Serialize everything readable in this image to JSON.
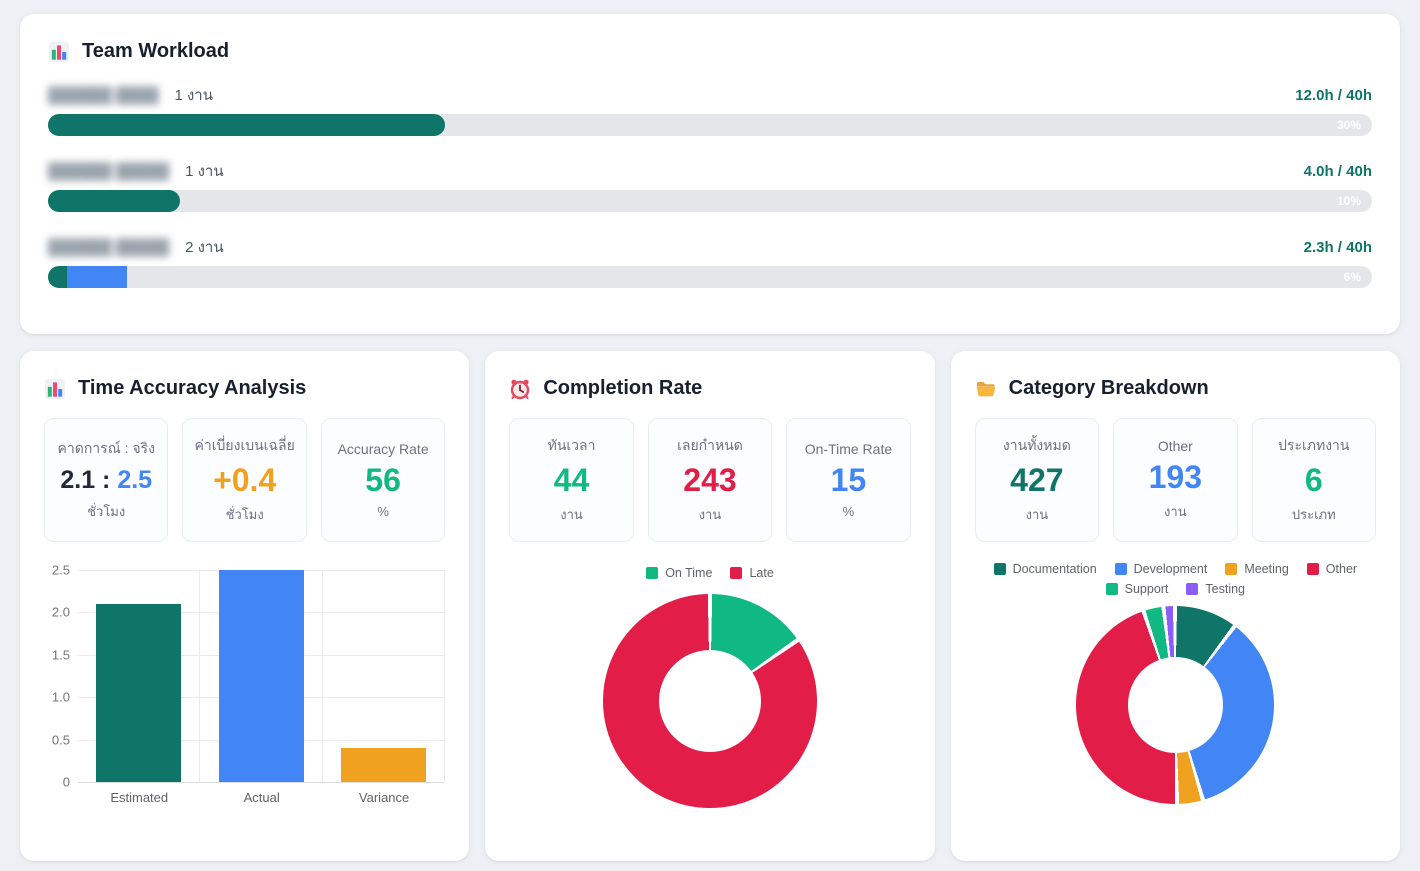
{
  "theme": {
    "background": "#eef0f6",
    "card_bg": "#ffffff",
    "teal": "#0e7568",
    "blue": "#4285f4",
    "red": "#e11d48",
    "green": "#10b981",
    "orange": "#f0a120",
    "purple": "#8b5cf6",
    "track_gray": "#e4e6ea",
    "text_dark": "#18202e",
    "text_gray": "#6b7280"
  },
  "workload": {
    "title": "Team Workload",
    "icon": "bar-chart-icon",
    "rows": [
      {
        "name_redacted": "██████ ████",
        "tasks_label": "1 งาน",
        "hours_label": "12.0h / 40h",
        "percent_label": "30%"
      },
      {
        "name_redacted": "██████ █████",
        "tasks_label": "1 งาน",
        "hours_label": "4.0h / 40h",
        "percent_label": "10%"
      },
      {
        "name_redacted": "██████ █████",
        "tasks_label": "2 งาน",
        "hours_label": "2.3h / 40h",
        "percent_label": "6%"
      }
    ]
  },
  "time_accuracy": {
    "title": "Time Accuracy Analysis",
    "icon": "bar-chart-icon",
    "stats": [
      {
        "label": "คาดการณ์ : จริง",
        "value_left": "2.1",
        "separator": " : ",
        "value_right": "2.5",
        "color_left": "#1f2937",
        "color_right": "#4285f4",
        "unit": "ชั่วโมง"
      },
      {
        "label": "ค่าเบี่ยงเบนเฉลี่ย",
        "value": "+0.4",
        "color": "#f0a120",
        "unit": "ชั่วโมง"
      },
      {
        "label": "Accuracy Rate",
        "value": "56",
        "color": "#10b981",
        "unit": "%"
      }
    ]
  },
  "completion": {
    "title": "Completion Rate",
    "icon": "alarm-clock-icon",
    "stats": [
      {
        "label": "ทันเวลา",
        "value": "44",
        "color": "#10b981",
        "unit": "งาน"
      },
      {
        "label": "เลยกำหนด",
        "value": "243",
        "color": "#e11d48",
        "unit": "งาน"
      },
      {
        "label": "On-Time Rate",
        "value": "15",
        "color": "#4285f4",
        "unit": "%"
      }
    ]
  },
  "category": {
    "title": "Category Breakdown",
    "icon": "folder-icon",
    "stats": [
      {
        "label": "งานทั้งหมด",
        "value": "427",
        "color": "#0e7568",
        "unit": "งาน"
      },
      {
        "label": "Other",
        "value": "193",
        "color": "#4285f4",
        "unit": "งาน"
      },
      {
        "label": "ประเภทงาน",
        "value": "6",
        "color": "#10b981",
        "unit": "ประเภท"
      }
    ]
  },
  "chart_data": [
    {
      "id": "team-workload-bars",
      "type": "bar",
      "orientation": "horizontal",
      "rows": [
        {
          "member": "(redacted)",
          "tasks": 1,
          "hours_used": 12.0,
          "hours_capacity": 40,
          "percent": 30,
          "segments": [
            {
              "color": "#0e7568",
              "pct": 30,
              "rounded": true
            }
          ]
        },
        {
          "member": "(redacted)",
          "tasks": 1,
          "hours_used": 4.0,
          "hours_capacity": 40,
          "percent": 10,
          "segments": [
            {
              "color": "#0e7568",
              "pct": 10,
              "rounded": true
            }
          ]
        },
        {
          "member": "(redacted)",
          "tasks": 2,
          "hours_used": 2.3,
          "hours_capacity": 40,
          "percent": 6,
          "segments": [
            {
              "color": "#0e7568",
              "pct": 1.4,
              "rounded": false
            },
            {
              "color": "#4285f4",
              "pct": 4.6,
              "rounded": false
            }
          ]
        }
      ]
    },
    {
      "id": "time-accuracy-bars",
      "type": "bar",
      "categories": [
        "Estimated",
        "Actual",
        "Variance"
      ],
      "values": [
        2.1,
        2.5,
        0.4
      ],
      "colors": [
        "#0e7568",
        "#4285f4",
        "#f0a120"
      ],
      "ylim": [
        0,
        2.5
      ],
      "yticks": [
        "2.5",
        "2.0",
        "1.5",
        "1.0",
        "0.5",
        "0"
      ],
      "grid": true,
      "title": "",
      "xlabel": "",
      "ylabel": ""
    },
    {
      "id": "completion-donut",
      "type": "pie",
      "subtype": "donut",
      "labels": [
        "On Time",
        "Late"
      ],
      "values": [
        44,
        243
      ],
      "colors": [
        "#10b981",
        "#e11d48"
      ],
      "legend_position": "top"
    },
    {
      "id": "category-donut",
      "type": "pie",
      "subtype": "donut",
      "labels": [
        "Documentation",
        "Development",
        "Meeting",
        "Other",
        "Support",
        "Testing"
      ],
      "values": [
        44,
        150,
        18,
        193,
        14,
        8
      ],
      "colors": [
        "#0e7568",
        "#4285f4",
        "#f0a120",
        "#e11d48",
        "#10b981",
        "#8b5cf6"
      ],
      "legend_position": "top"
    }
  ]
}
